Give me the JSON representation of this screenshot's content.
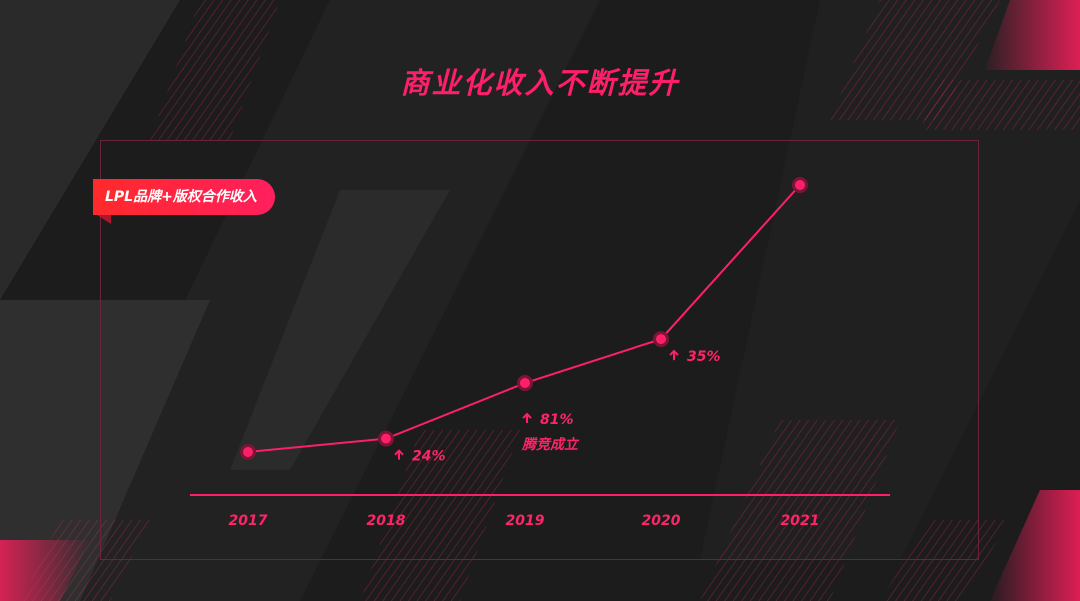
{
  "title": "商业化收入不断提升",
  "colors": {
    "accent": "#ff1f68",
    "background": "#1c1c1d"
  },
  "chart_data": {
    "type": "line",
    "title": "商业化收入不断提升",
    "series": [
      {
        "name": "LPL品牌+版权合作收入",
        "values": [
          1.0,
          1.24,
          2.24,
          3.03,
          5.8
        ]
      }
    ],
    "categories": [
      "2017",
      "2018",
      "2019",
      "2020",
      "2021"
    ],
    "y_axis_shown": false,
    "grid": false,
    "annotations": [
      {
        "category": "2018",
        "text": "24%",
        "icon": "up-arrow-icon"
      },
      {
        "category": "2019",
        "text": "81%",
        "icon": "up-arrow-icon",
        "note": "腾竞成立"
      },
      {
        "category": "2020",
        "text": "35%",
        "icon": "up-arrow-icon"
      }
    ]
  }
}
